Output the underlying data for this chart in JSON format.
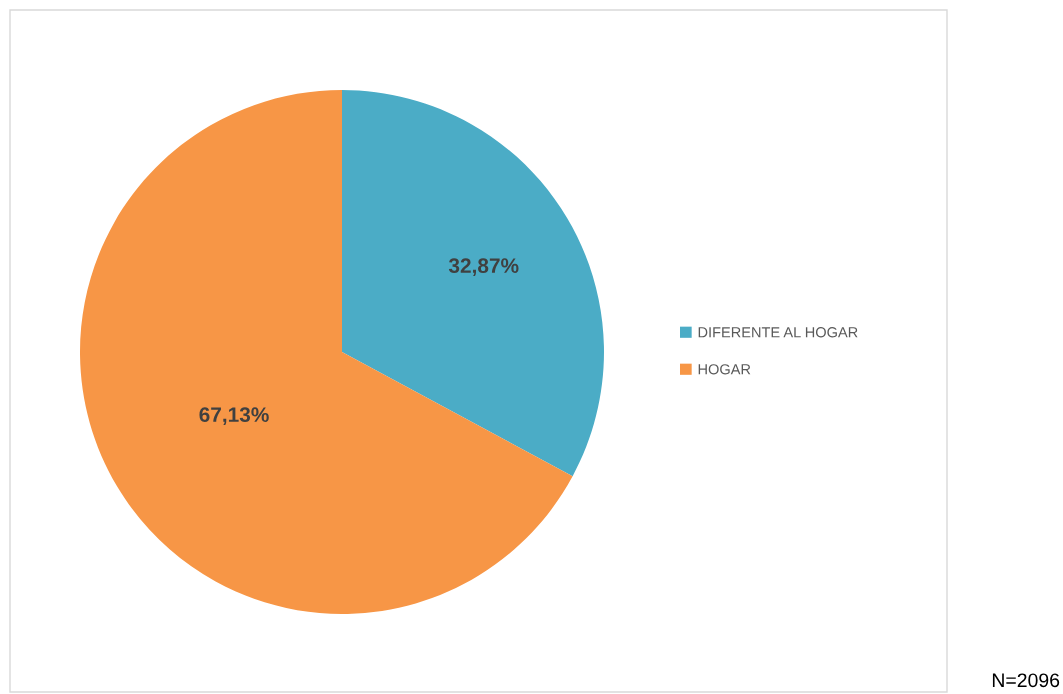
{
  "chart_data": {
    "type": "pie",
    "categories": [
      "DIFERENTE AL HOGAR",
      "HOGAR"
    ],
    "values": [
      32.87,
      67.13
    ],
    "colors": [
      "#4bacc6",
      "#f79646"
    ],
    "value_labels": [
      "32,87%",
      "67,13%"
    ],
    "legend": "right",
    "annotations": [
      "N=2096"
    ]
  }
}
